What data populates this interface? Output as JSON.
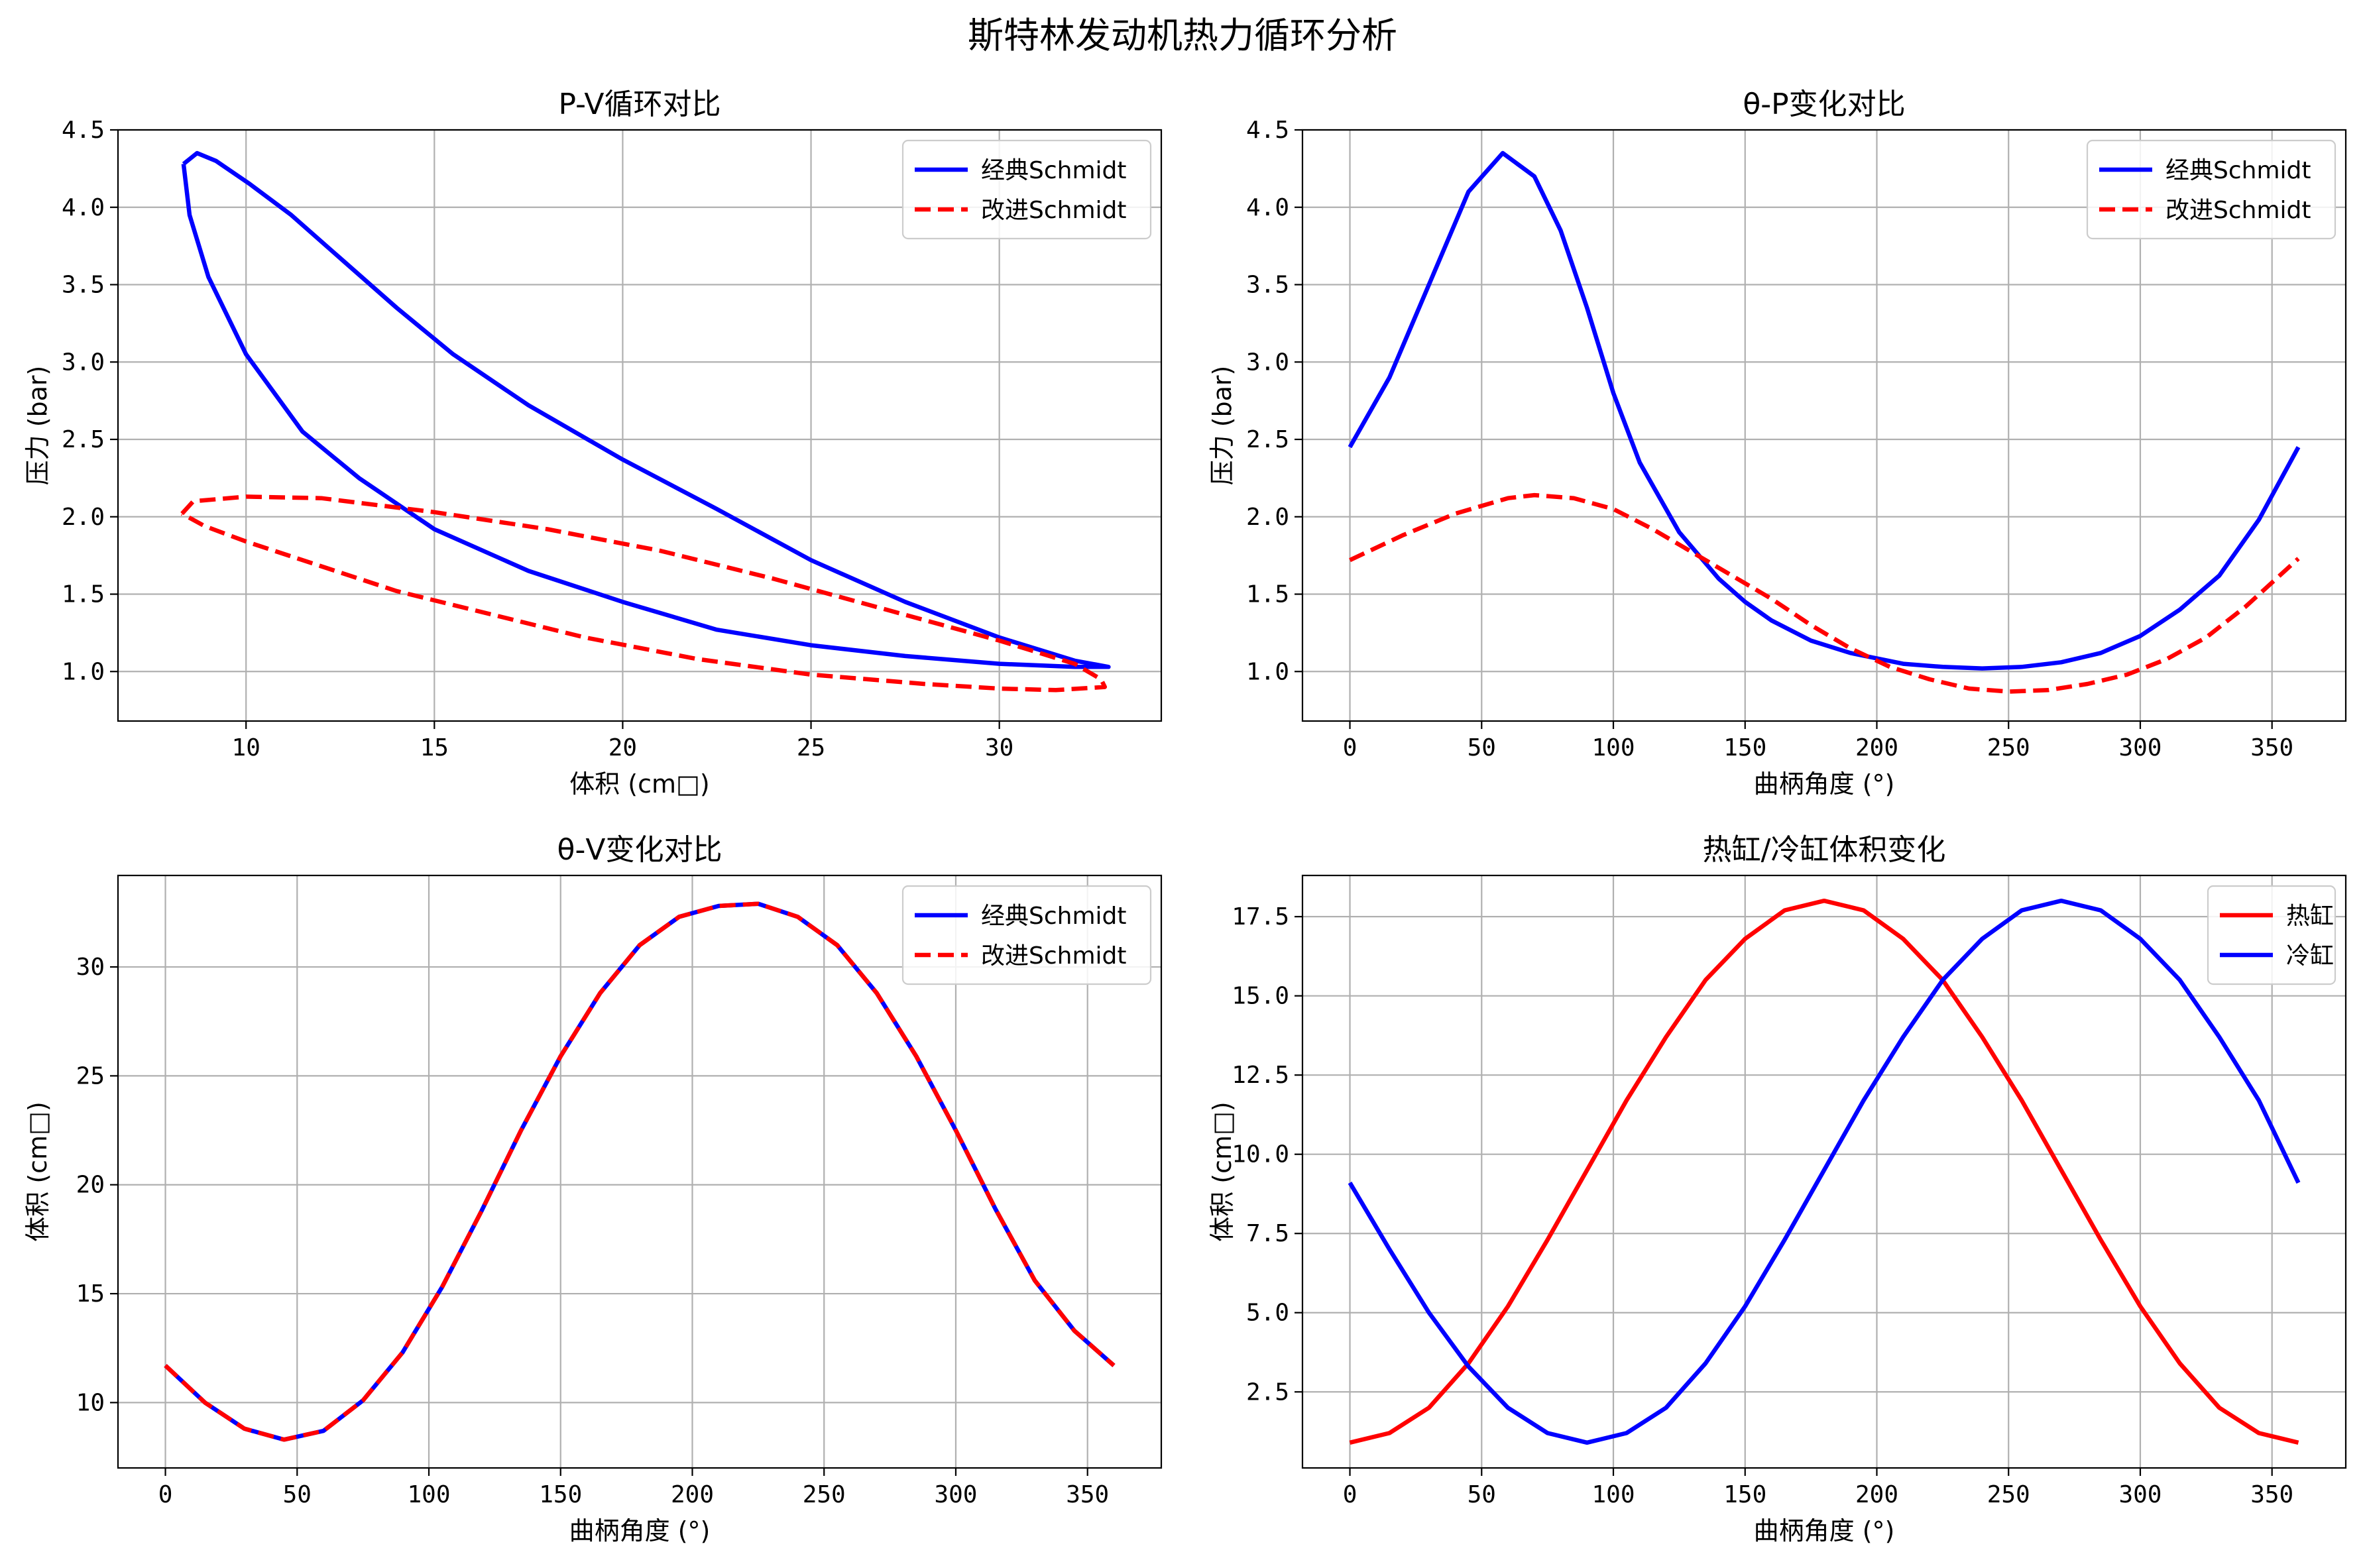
{
  "figure": {
    "suptitle": "斯特林发动机热力循环分析"
  },
  "colors": {
    "blue": "#0000ff",
    "red": "#ff0000",
    "grid": "#b0b0b0"
  },
  "chart_data": [
    {
      "id": "pv",
      "type": "line",
      "title": "P-V循环对比",
      "xlabel": "体积 (cm□)",
      "ylabel": "压力 (bar)",
      "xlim": [
        6.6,
        34.3
      ],
      "ylim": [
        0.68,
        4.5
      ],
      "xticks": [
        10,
        15,
        20,
        25,
        30
      ],
      "yticks": [
        1.0,
        1.5,
        2.0,
        2.5,
        3.0,
        3.5,
        4.0,
        4.5
      ],
      "grid": true,
      "legend": "top-right",
      "series": [
        {
          "name": "经典Schmidt",
          "color": "#0000ff",
          "style": "solid",
          "points": [
            [
              8.34,
              4.28
            ],
            [
              8.7,
              4.35
            ],
            [
              9.2,
              4.3
            ],
            [
              10.1,
              4.15
            ],
            [
              11.2,
              3.95
            ],
            [
              12.6,
              3.65
            ],
            [
              14.0,
              3.35
            ],
            [
              15.5,
              3.05
            ],
            [
              17.5,
              2.72
            ],
            [
              20.0,
              2.37
            ],
            [
              22.5,
              2.05
            ],
            [
              25.0,
              1.72
            ],
            [
              27.5,
              1.45
            ],
            [
              30.0,
              1.22
            ],
            [
              32.0,
              1.07
            ],
            [
              32.9,
              1.03
            ],
            [
              32.0,
              1.03
            ],
            [
              30.0,
              1.05
            ],
            [
              27.5,
              1.1
            ],
            [
              25.0,
              1.17
            ],
            [
              22.5,
              1.27
            ],
            [
              20.0,
              1.45
            ],
            [
              17.5,
              1.65
            ],
            [
              15.0,
              1.92
            ],
            [
              13.0,
              2.25
            ],
            [
              11.5,
              2.55
            ],
            [
              10.0,
              3.05
            ],
            [
              9.0,
              3.55
            ],
            [
              8.5,
              3.95
            ],
            [
              8.34,
              4.28
            ]
          ]
        },
        {
          "name": "改进Schmidt",
          "color": "#ff0000",
          "style": "dashed",
          "points": [
            [
              8.3,
              2.02
            ],
            [
              8.6,
              2.1
            ],
            [
              10.0,
              2.13
            ],
            [
              12.0,
              2.12
            ],
            [
              15.0,
              2.03
            ],
            [
              18.0,
              1.92
            ],
            [
              21.0,
              1.78
            ],
            [
              24.0,
              1.6
            ],
            [
              27.0,
              1.4
            ],
            [
              30.0,
              1.2
            ],
            [
              32.0,
              1.05
            ],
            [
              32.7,
              0.95
            ],
            [
              32.8,
              0.9
            ],
            [
              31.5,
              0.88
            ],
            [
              30.0,
              0.89
            ],
            [
              28.0,
              0.92
            ],
            [
              25.0,
              0.98
            ],
            [
              22.0,
              1.08
            ],
            [
              19.0,
              1.22
            ],
            [
              16.0,
              1.4
            ],
            [
              14.0,
              1.52
            ],
            [
              12.0,
              1.68
            ],
            [
              10.0,
              1.84
            ],
            [
              8.9,
              1.94
            ],
            [
              8.3,
              2.02
            ]
          ]
        }
      ]
    },
    {
      "id": "tp",
      "type": "line",
      "title": "θ-P变化对比",
      "xlabel": "曲柄角度 (°)",
      "ylabel": "压力 (bar)",
      "xlim": [
        -18,
        378
      ],
      "ylim": [
        0.68,
        4.5
      ],
      "xticks": [
        0,
        50,
        100,
        150,
        200,
        250,
        300,
        350
      ],
      "yticks": [
        1.0,
        1.5,
        2.0,
        2.5,
        3.0,
        3.5,
        4.0,
        4.5
      ],
      "grid": true,
      "legend": "top-right",
      "series": [
        {
          "name": "经典Schmidt",
          "color": "#0000ff",
          "style": "solid",
          "points": [
            [
              0,
              2.45
            ],
            [
              15,
              2.9
            ],
            [
              30,
              3.5
            ],
            [
              45,
              4.1
            ],
            [
              58,
              4.35
            ],
            [
              70,
              4.2
            ],
            [
              80,
              3.85
            ],
            [
              90,
              3.35
            ],
            [
              100,
              2.8
            ],
            [
              110,
              2.35
            ],
            [
              125,
              1.9
            ],
            [
              140,
              1.6
            ],
            [
              150,
              1.45
            ],
            [
              160,
              1.33
            ],
            [
              175,
              1.2
            ],
            [
              190,
              1.12
            ],
            [
              210,
              1.05
            ],
            [
              225,
              1.03
            ],
            [
              240,
              1.02
            ],
            [
              255,
              1.03
            ],
            [
              270,
              1.06
            ],
            [
              285,
              1.12
            ],
            [
              300,
              1.23
            ],
            [
              315,
              1.4
            ],
            [
              330,
              1.62
            ],
            [
              345,
              1.98
            ],
            [
              360,
              2.45
            ]
          ]
        },
        {
          "name": "改进Schmidt",
          "color": "#ff0000",
          "style": "dashed",
          "points": [
            [
              0,
              1.72
            ],
            [
              20,
              1.88
            ],
            [
              40,
              2.02
            ],
            [
              60,
              2.12
            ],
            [
              70,
              2.14
            ],
            [
              85,
              2.12
            ],
            [
              100,
              2.05
            ],
            [
              115,
              1.92
            ],
            [
              130,
              1.77
            ],
            [
              145,
              1.62
            ],
            [
              160,
              1.47
            ],
            [
              175,
              1.3
            ],
            [
              190,
              1.15
            ],
            [
              205,
              1.03
            ],
            [
              220,
              0.95
            ],
            [
              235,
              0.89
            ],
            [
              250,
              0.87
            ],
            [
              265,
              0.88
            ],
            [
              280,
              0.92
            ],
            [
              295,
              0.98
            ],
            [
              310,
              1.08
            ],
            [
              325,
              1.22
            ],
            [
              340,
              1.42
            ],
            [
              360,
              1.73
            ]
          ]
        }
      ]
    },
    {
      "id": "tv",
      "type": "line",
      "title": "θ-V变化对比",
      "xlabel": "曲柄角度 (°)",
      "ylabel": "体积 (cm□)",
      "xlim": [
        -18,
        378
      ],
      "ylim": [
        7.0,
        34.2
      ],
      "xticks": [
        0,
        50,
        100,
        150,
        200,
        250,
        300,
        350
      ],
      "yticks": [
        10,
        15,
        20,
        25,
        30
      ],
      "grid": true,
      "legend": "top-right",
      "series": [
        {
          "name": "经典Schmidt",
          "color": "#0000ff",
          "style": "solid",
          "points": [
            [
              0,
              11.7
            ],
            [
              15,
              10.0
            ],
            [
              30,
              8.8
            ],
            [
              45,
              8.3
            ],
            [
              60,
              8.7
            ],
            [
              75,
              10.1
            ],
            [
              90,
              12.3
            ],
            [
              105,
              15.3
            ],
            [
              120,
              18.8
            ],
            [
              135,
              22.5
            ],
            [
              150,
              25.9
            ],
            [
              165,
              28.8
            ],
            [
              180,
              31.0
            ],
            [
              195,
              32.3
            ],
            [
              210,
              32.8
            ],
            [
              225,
              32.9
            ],
            [
              240,
              32.3
            ],
            [
              255,
              31.0
            ],
            [
              270,
              28.8
            ],
            [
              285,
              25.9
            ],
            [
              300,
              22.5
            ],
            [
              315,
              18.9
            ],
            [
              330,
              15.6
            ],
            [
              345,
              13.3
            ],
            [
              360,
              11.7
            ]
          ]
        },
        {
          "name": "改进Schmidt",
          "color": "#ff0000",
          "style": "dashed",
          "points": [
            [
              0,
              11.7
            ],
            [
              15,
              10.0
            ],
            [
              30,
              8.8
            ],
            [
              45,
              8.3
            ],
            [
              60,
              8.7
            ],
            [
              75,
              10.1
            ],
            [
              90,
              12.3
            ],
            [
              105,
              15.3
            ],
            [
              120,
              18.8
            ],
            [
              135,
              22.5
            ],
            [
              150,
              25.9
            ],
            [
              165,
              28.8
            ],
            [
              180,
              31.0
            ],
            [
              195,
              32.3
            ],
            [
              210,
              32.8
            ],
            [
              225,
              32.9
            ],
            [
              240,
              32.3
            ],
            [
              255,
              31.0
            ],
            [
              270,
              28.8
            ],
            [
              285,
              25.9
            ],
            [
              300,
              22.5
            ],
            [
              315,
              18.9
            ],
            [
              330,
              15.6
            ],
            [
              345,
              13.3
            ],
            [
              360,
              11.7
            ]
          ]
        }
      ]
    },
    {
      "id": "hc",
      "type": "line",
      "title": "热缸/冷缸体积变化",
      "xlabel": "曲柄角度 (°)",
      "ylabel": "体积 (cm□)",
      "xlim": [
        -18,
        378
      ],
      "ylim": [
        0.1,
        18.8
      ],
      "xticks": [
        0,
        50,
        100,
        150,
        200,
        250,
        300,
        350
      ],
      "yticks": [
        2.5,
        5.0,
        7.5,
        10.0,
        12.5,
        15.0,
        17.5
      ],
      "grid": true,
      "legend": "top-right",
      "series": [
        {
          "name": "热缸",
          "color": "#ff0000",
          "style": "solid",
          "points": [
            [
              0,
              0.9
            ],
            [
              15,
              1.2
            ],
            [
              30,
              2.0
            ],
            [
              45,
              3.4
            ],
            [
              60,
              5.2
            ],
            [
              75,
              7.3
            ],
            [
              90,
              9.5
            ],
            [
              105,
              11.7
            ],
            [
              120,
              13.7
            ],
            [
              135,
              15.5
            ],
            [
              150,
              16.8
            ],
            [
              165,
              17.7
            ],
            [
              180,
              18.0
            ],
            [
              195,
              17.7
            ],
            [
              210,
              16.8
            ],
            [
              225,
              15.5
            ],
            [
              240,
              13.7
            ],
            [
              255,
              11.7
            ],
            [
              270,
              9.5
            ],
            [
              285,
              7.3
            ],
            [
              300,
              5.2
            ],
            [
              315,
              3.4
            ],
            [
              330,
              2.0
            ],
            [
              345,
              1.2
            ],
            [
              360,
              0.9
            ]
          ]
        },
        {
          "name": "冷缸",
          "color": "#0000ff",
          "style": "solid",
          "points": [
            [
              0,
              9.1
            ],
            [
              15,
              7.0
            ],
            [
              30,
              5.0
            ],
            [
              45,
              3.3
            ],
            [
              60,
              2.0
            ],
            [
              75,
              1.2
            ],
            [
              90,
              0.9
            ],
            [
              105,
              1.2
            ],
            [
              120,
              2.0
            ],
            [
              135,
              3.4
            ],
            [
              150,
              5.2
            ],
            [
              165,
              7.3
            ],
            [
              180,
              9.5
            ],
            [
              195,
              11.7
            ],
            [
              210,
              13.7
            ],
            [
              225,
              15.5
            ],
            [
              240,
              16.8
            ],
            [
              255,
              17.7
            ],
            [
              270,
              18.0
            ],
            [
              285,
              17.7
            ],
            [
              300,
              16.8
            ],
            [
              315,
              15.5
            ],
            [
              330,
              13.7
            ],
            [
              345,
              11.7
            ],
            [
              360,
              9.1
            ]
          ]
        }
      ]
    }
  ]
}
